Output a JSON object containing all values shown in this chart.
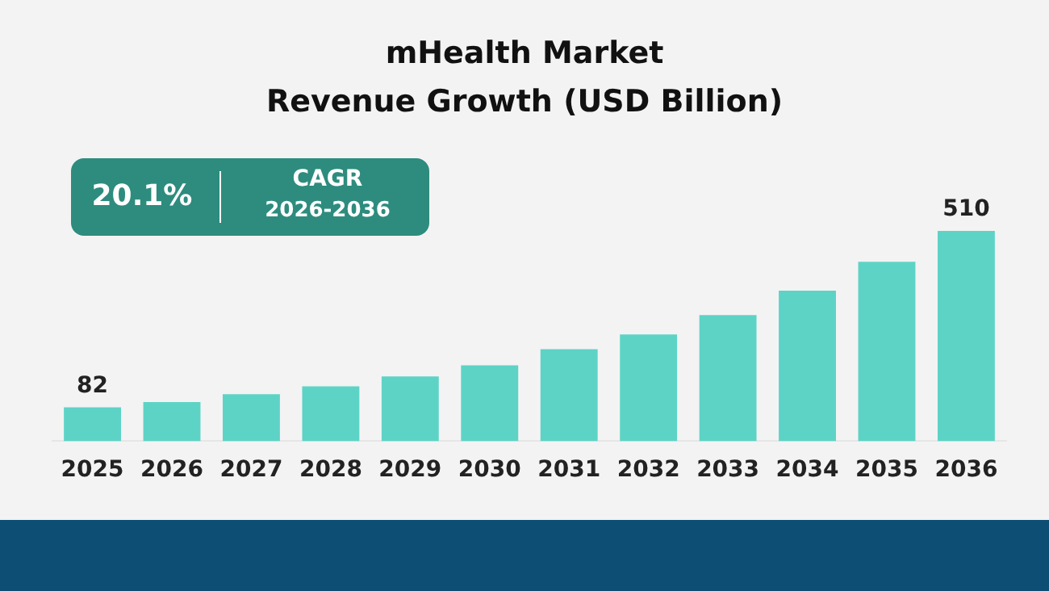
{
  "chart_data": {
    "type": "bar",
    "title": "mHealth Market",
    "subtitle": "Revenue Growth (USD Billion)",
    "categories": [
      "2025",
      "2026",
      "2027",
      "2028",
      "2029",
      "2030",
      "2031",
      "2032",
      "2033",
      "2034",
      "2035",
      "2036"
    ],
    "values": [
      82,
      95,
      114,
      133,
      157,
      184,
      223,
      259,
      306,
      365,
      435,
      510
    ],
    "value_labels": [
      "82",
      null,
      null,
      null,
      null,
      null,
      null,
      null,
      null,
      null,
      null,
      "510"
    ],
    "color": "#5dd3c6",
    "annotations": [
      "20.1%",
      "CAGR",
      "2026-2036"
    ],
    "grid": false,
    "legend": false
  }
}
